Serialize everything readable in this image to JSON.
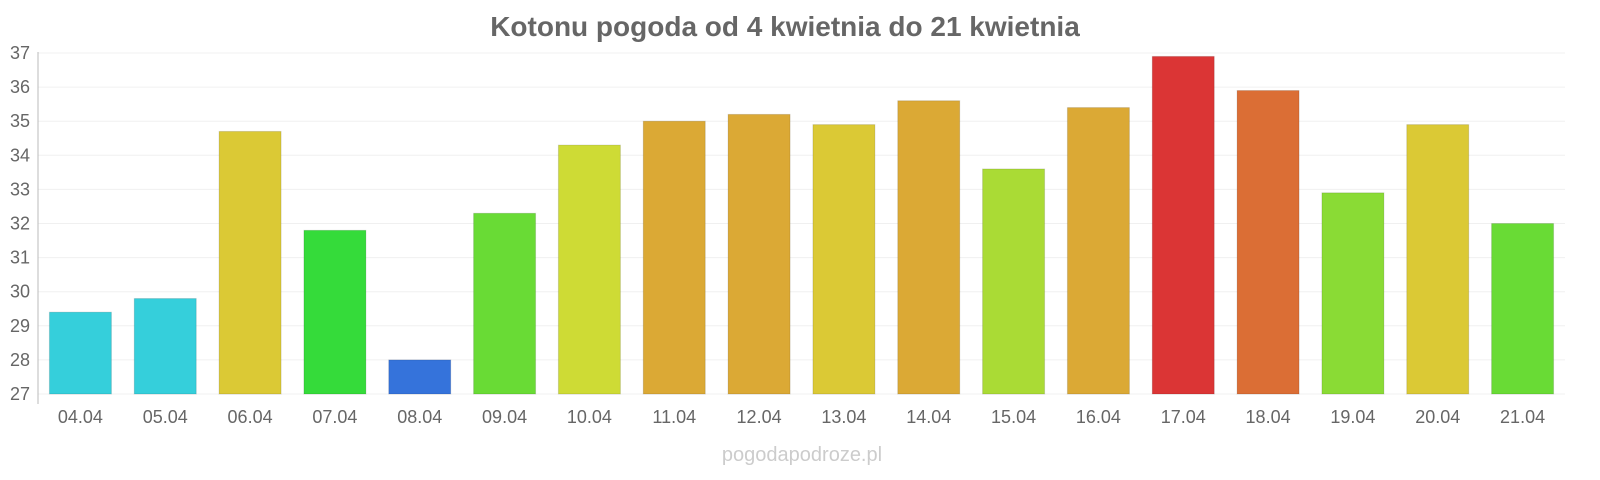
{
  "chart_data": {
    "type": "bar",
    "title": "Kotonu pogoda od 4 kwietnia do 21 kwietnia",
    "xlabel": "",
    "ylabel": "",
    "ylim": [
      27,
      37
    ],
    "yticks": [
      27,
      28,
      29,
      30,
      31,
      32,
      33,
      34,
      35,
      36,
      37
    ],
    "grid": true,
    "categories": [
      "04.04",
      "05.04",
      "06.04",
      "07.04",
      "08.04",
      "09.04",
      "10.04",
      "11.04",
      "12.04",
      "13.04",
      "14.04",
      "15.04",
      "16.04",
      "17.04",
      "18.04",
      "19.04",
      "20.04",
      "21.04"
    ],
    "values": [
      29.4,
      29.8,
      34.7,
      31.8,
      28.0,
      32.3,
      34.3,
      35.0,
      35.2,
      34.9,
      35.6,
      33.6,
      35.4,
      36.9,
      35.9,
      32.9,
      34.9,
      32.0
    ],
    "colors": [
      "#35cfdb",
      "#35cfdb",
      "#dbc935",
      "#35db3a",
      "#3573db",
      "#69db35",
      "#cedb35",
      "#dba935",
      "#dba935",
      "#dbc935",
      "#dba935",
      "#aadb35",
      "#dba935",
      "#db3535",
      "#db6e35",
      "#8adb35",
      "#dbc935",
      "#69db35"
    ]
  },
  "watermark": "pogodapodroze.pl"
}
